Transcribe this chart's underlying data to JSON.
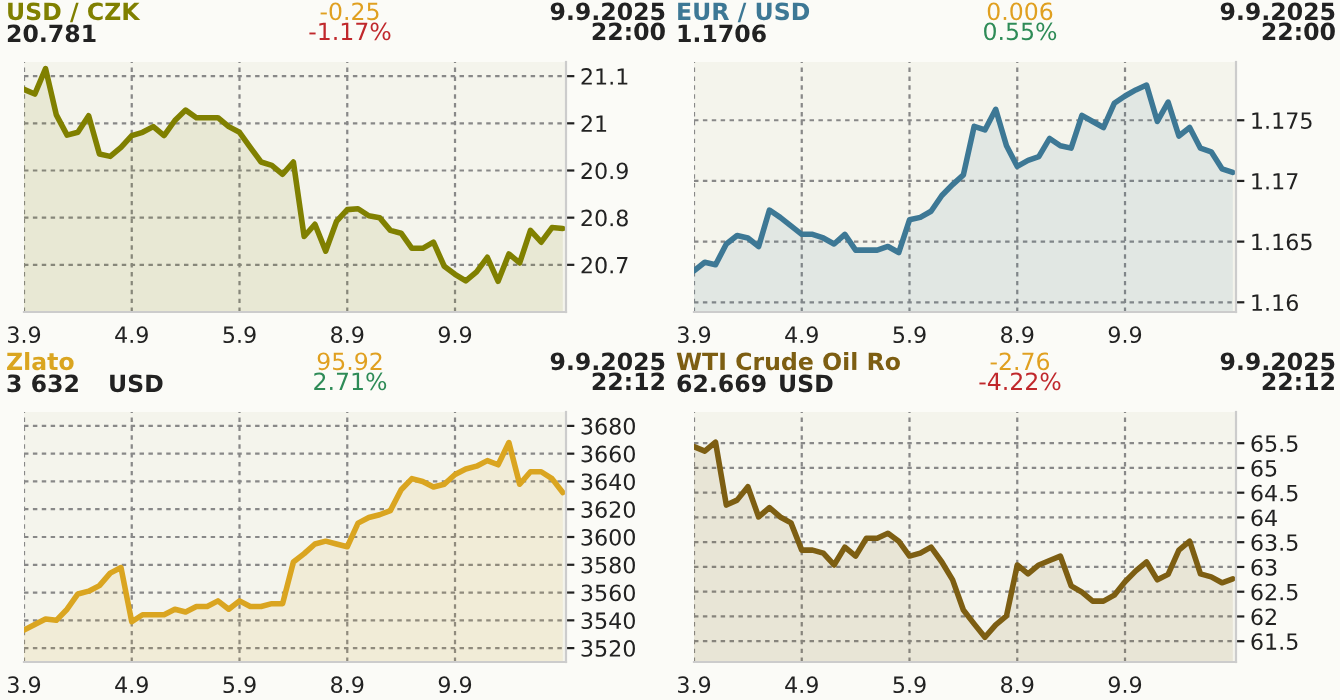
{
  "chart_data": [
    {
      "type": "area",
      "title": "USD / CZK",
      "annotations": [
        "20.781",
        "-0.25",
        "-1.17%",
        "9.9.2025",
        "22:00"
      ],
      "ylim": [
        20.6,
        21.13
      ],
      "yticks": [
        20.7,
        20.8,
        20.9,
        21,
        21.1
      ],
      "grid": true,
      "categories": [
        "3.9",
        null,
        null,
        null,
        null,
        null,
        null,
        null,
        null,
        null,
        "4.9",
        null,
        null,
        null,
        null,
        null,
        null,
        null,
        null,
        null,
        "5.9",
        null,
        null,
        null,
        null,
        null,
        null,
        null,
        null,
        null,
        "8.9",
        null,
        null,
        null,
        null,
        null,
        null,
        null,
        null,
        null,
        "9.9",
        null,
        null,
        null,
        null,
        null,
        null,
        null,
        null,
        null,
        null
      ],
      "series": [
        {
          "color": "#808000",
          "values": [
            21.072,
            21.062,
            21.116,
            21.018,
            20.975,
            20.981,
            21.016,
            20.935,
            20.93,
            20.949,
            20.974,
            20.981,
            20.993,
            20.974,
            21.006,
            21.028,
            21.012,
            21.012,
            21.012,
            20.993,
            20.981,
            20.949,
            20.918,
            20.911,
            20.892,
            20.918,
            20.76,
            20.786,
            20.729,
            20.792,
            20.817,
            20.819,
            20.804,
            20.8,
            20.773,
            20.767,
            20.735,
            20.735,
            20.748,
            20.697,
            20.68,
            20.666,
            20.685,
            20.716,
            20.665,
            20.723,
            20.704,
            20.773,
            20.748,
            20.779,
            20.777
          ]
        }
      ]
    },
    {
      "type": "area",
      "title": "EUR / USD",
      "annotations": [
        "1.1706",
        "0.006",
        "0.55%",
        "9.9.2025",
        "22:00"
      ],
      "ylim": [
        1.1592,
        1.1798
      ],
      "yticks": [
        1.16,
        1.165,
        1.17,
        1.175
      ],
      "grid": true,
      "categories": [
        "3.9",
        null,
        null,
        null,
        null,
        null,
        null,
        null,
        null,
        null,
        "4.9",
        null,
        null,
        null,
        null,
        null,
        null,
        null,
        null,
        null,
        "5.9",
        null,
        null,
        null,
        null,
        null,
        null,
        null,
        null,
        null,
        "8.9",
        null,
        null,
        null,
        null,
        null,
        null,
        null,
        null,
        null,
        "9.9",
        null,
        null,
        null,
        null,
        null,
        null,
        null,
        null,
        null,
        null
      ],
      "series": [
        {
          "color": "#3d7895",
          "values": [
            1.1626,
            1.1633,
            1.1631,
            1.1648,
            1.1655,
            1.1653,
            1.1646,
            1.1676,
            1.167,
            1.1663,
            1.1656,
            1.1656,
            1.1653,
            1.1648,
            1.1656,
            1.1643,
            1.1643,
            1.1643,
            1.1646,
            1.1641,
            1.1668,
            1.167,
            1.1675,
            1.1688,
            1.1697,
            1.1705,
            1.1745,
            1.1742,
            1.1759,
            1.1729,
            1.1712,
            1.1717,
            1.172,
            1.1735,
            1.1729,
            1.1727,
            1.1754,
            1.1749,
            1.1744,
            1.1764,
            1.177,
            1.1775,
            1.1779,
            1.1749,
            1.1765,
            1.1737,
            1.1744,
            1.1727,
            1.1724,
            1.171,
            1.1707
          ]
        }
      ]
    },
    {
      "type": "area",
      "title": "Zlato",
      "annotations": [
        "3 632",
        "95.92",
        "2.71%",
        "9.9.2025",
        "22:12",
        "USD"
      ],
      "ylim": [
        3510,
        3690
      ],
      "yticks": [
        3520,
        3540,
        3560,
        3580,
        3600,
        3620,
        3640,
        3660,
        3680
      ],
      "grid": true,
      "categories": [
        "3.9",
        null,
        null,
        null,
        null,
        null,
        null,
        null,
        null,
        null,
        "4.9",
        null,
        null,
        null,
        null,
        null,
        null,
        null,
        null,
        null,
        "5.9",
        null,
        null,
        null,
        null,
        null,
        null,
        null,
        null,
        null,
        "8.9",
        null,
        null,
        null,
        null,
        null,
        null,
        null,
        null,
        null,
        "9.9",
        null,
        null,
        null,
        null,
        null,
        null,
        null,
        null,
        null,
        null
      ],
      "series": [
        {
          "color": "#daa520",
          "values": [
            3533,
            3537,
            3541,
            3540,
            3548,
            3559,
            3561,
            3565,
            3574,
            3578,
            3539,
            3544,
            3544,
            3544,
            3548,
            3546,
            3550,
            3550,
            3554,
            3548,
            3554,
            3550,
            3550,
            3552,
            3552,
            3582,
            3588,
            3595,
            3597,
            3595,
            3593,
            3610,
            3614,
            3616,
            3619,
            3634,
            3642,
            3640,
            3636,
            3638,
            3645,
            3649,
            3651,
            3655,
            3652,
            3668,
            3638,
            3647,
            3647,
            3642,
            3632
          ]
        }
      ]
    },
    {
      "type": "area",
      "title": "WTI Crude Oil Ro",
      "annotations": [
        "62.669",
        "-2.76",
        "-4.22%",
        "9.9.2025",
        "22:12",
        "USD"
      ],
      "ylim": [
        61.08,
        66.13
      ],
      "yticks": [
        61.5,
        62,
        62.5,
        63,
        63.5,
        64,
        64.5,
        65,
        65.5
      ],
      "grid": true,
      "categories": [
        "3.9",
        null,
        null,
        null,
        null,
        null,
        null,
        null,
        null,
        null,
        "4.9",
        null,
        null,
        null,
        null,
        null,
        null,
        null,
        null,
        null,
        "5.9",
        null,
        null,
        null,
        null,
        null,
        null,
        null,
        null,
        null,
        "8.9",
        null,
        null,
        null,
        null,
        null,
        null,
        null,
        null,
        null,
        "9.9",
        null,
        null,
        null,
        null,
        null,
        null,
        null,
        null,
        null,
        null
      ],
      "series": [
        {
          "color": "#7d5e12",
          "values": [
            65.43,
            65.34,
            65.52,
            64.25,
            64.35,
            64.62,
            64.01,
            64.2,
            64.01,
            63.89,
            63.34,
            63.34,
            63.28,
            63.04,
            63.4,
            63.22,
            63.58,
            63.58,
            63.68,
            63.52,
            63.22,
            63.28,
            63.4,
            63.1,
            62.74,
            62.13,
            61.85,
            61.58,
            61.83,
            62.01,
            63.04,
            62.86,
            63.04,
            63.13,
            63.22,
            62.62,
            62.49,
            62.31,
            62.31,
            62.43,
            62.7,
            62.92,
            63.1,
            62.74,
            62.85,
            63.34,
            63.52,
            62.86,
            62.8,
            62.68,
            62.76
          ]
        }
      ]
    }
  ]
}
